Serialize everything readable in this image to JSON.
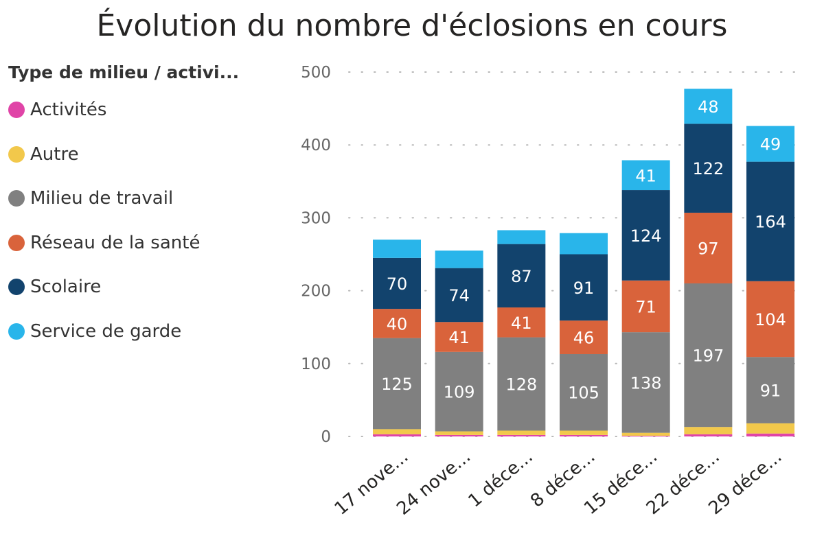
{
  "chart_data": {
    "type": "bar",
    "stacked": true,
    "title": "Évolution du nombre d'éclosions en cours",
    "legend_title": "Type de milieu / activi...",
    "legend_position": "left",
    "xlabel": "",
    "ylabel": "",
    "ylim": [
      0,
      500
    ],
    "yticks": [
      0,
      100,
      200,
      300,
      400,
      500
    ],
    "grid": true,
    "categories": [
      "17 nove...",
      "24 nove...",
      "1 déce...",
      "8 déce...",
      "15 déce...",
      "22 déce...",
      "29 déce..."
    ],
    "series": [
      {
        "name": "Activités",
        "color": "#E044A7",
        "values": [
          3,
          2,
          2,
          2,
          1,
          3,
          4
        ]
      },
      {
        "name": "Autre",
        "color": "#F2C84B",
        "values": [
          7,
          5,
          6,
          6,
          4,
          10,
          14
        ]
      },
      {
        "name": "Milieu de travail",
        "color": "#808080",
        "values": [
          125,
          109,
          128,
          105,
          138,
          197,
          91
        ]
      },
      {
        "name": "Réseau de la santé",
        "color": "#D9633B",
        "values": [
          40,
          41,
          41,
          46,
          71,
          97,
          104
        ]
      },
      {
        "name": "Scolaire",
        "color": "#12436D",
        "values": [
          70,
          74,
          87,
          91,
          124,
          122,
          164
        ]
      },
      {
        "name": "Service de garde",
        "color": "#29B5EA",
        "values": [
          25,
          24,
          19,
          29,
          41,
          48,
          49
        ]
      }
    ],
    "data_labels": {
      "Milieu de travail": [
        "125",
        "109",
        "128",
        "105",
        "138",
        "197",
        "91"
      ],
      "Réseau de la santé": [
        "40",
        "41",
        "41",
        "46",
        "71",
        "97",
        "104"
      ],
      "Scolaire": [
        "70",
        "74",
        "87",
        "91",
        "124",
        "122",
        "164"
      ],
      "Service de garde": [
        "",
        "",
        "",
        "",
        "41",
        "48",
        "49"
      ]
    }
  }
}
